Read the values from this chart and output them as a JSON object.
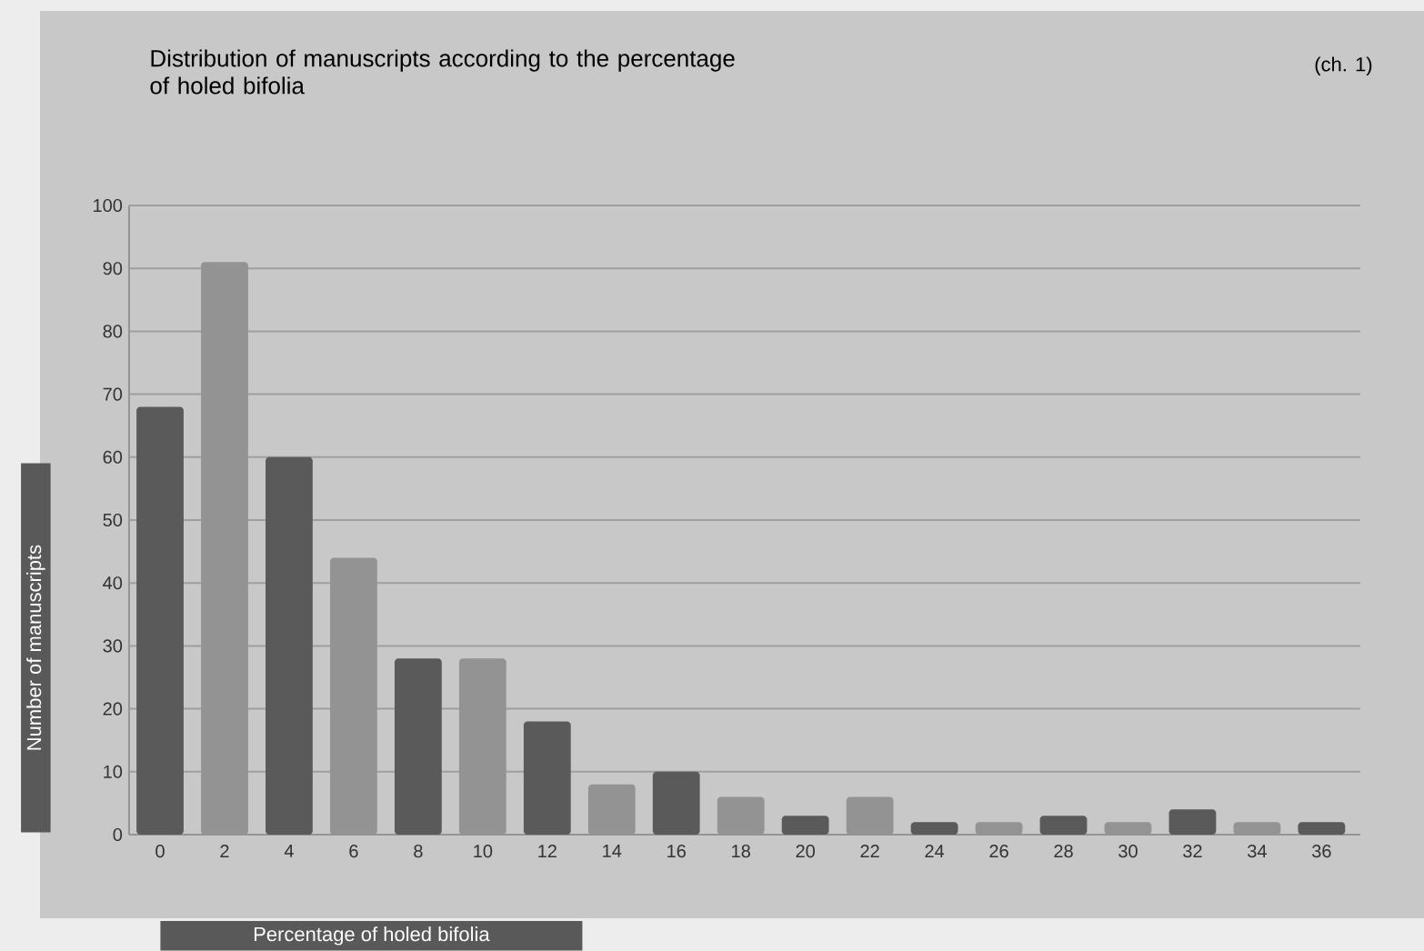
{
  "chart_data": {
    "type": "bar",
    "title": "Distribution of manuscripts according to the percentage of holed bifolia",
    "annotations": [
      "(ch. 1)"
    ],
    "xlabel": "Percentage of holed bifolia",
    "ylabel": "Number of manuscripts",
    "categories": [
      "0",
      "2",
      "4",
      "6",
      "8",
      "10",
      "12",
      "14",
      "16",
      "18",
      "20",
      "22",
      "24",
      "26",
      "28",
      "30",
      "32",
      "34",
      "36"
    ],
    "values": [
      68,
      91,
      60,
      44,
      28,
      28,
      18,
      8,
      10,
      6,
      3,
      6,
      2,
      2,
      3,
      2,
      4,
      2,
      2
    ],
    "colors": [
      "#5a5a5a",
      "#939393",
      "#5a5a5a",
      "#939393",
      "#5a5a5a",
      "#939393",
      "#5a5a5a",
      "#939393",
      "#5a5a5a",
      "#939393",
      "#5a5a5a",
      "#939393",
      "#5a5a5a",
      "#939393",
      "#5a5a5a",
      "#939393",
      "#5a5a5a",
      "#939393",
      "#5a5a5a"
    ],
    "ylim": [
      0,
      100
    ],
    "yticks": [
      0,
      10,
      20,
      30,
      40,
      50,
      60,
      70,
      80,
      90,
      100
    ],
    "grid": "y"
  }
}
